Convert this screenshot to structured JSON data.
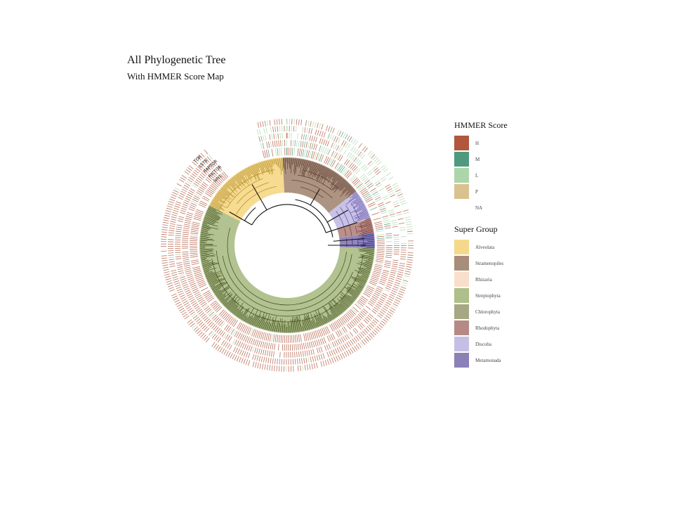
{
  "title": "All Phylogenetic Tree",
  "subtitle": "With HMMER Score Map",
  "ring_labels": [
    "TOR",
    "LST8",
    "RAPTOR",
    "RICTOR",
    "SIN1"
  ],
  "hmmer_legend": {
    "title": "HMMER Score",
    "items": [
      {
        "label": "H",
        "color": "#b0573d"
      },
      {
        "label": "M",
        "color": "#4f9a7f"
      },
      {
        "label": "L",
        "color": "#acd6aa"
      },
      {
        "label": "P",
        "color": "#d9c28f"
      },
      {
        "label": "NA",
        "color": "#ffffff"
      }
    ]
  },
  "group_legend": {
    "title": "Super Group",
    "items": [
      {
        "label": "Alveolata",
        "color": "#f5d98a"
      },
      {
        "label": "Stramenopiles",
        "color": "#a98d7b"
      },
      {
        "label": "Rhizaria",
        "color": "#f9dfcb"
      },
      {
        "label": "Streptophyta",
        "color": "#aebf8a"
      },
      {
        "label": "Chlorophyta",
        "color": "#a7a883"
      },
      {
        "label": "Rhodophyta",
        "color": "#b58a85"
      },
      {
        "label": "Discoba",
        "color": "#c5bfe6"
      },
      {
        "label": "Metamonada",
        "color": "#8c80b8"
      }
    ]
  },
  "clades": [
    {
      "group": "Alveolata",
      "start": 297,
      "end": 357,
      "color": "#f5d98a",
      "branch": "#b08a2a"
    },
    {
      "group": "Stramenopiles",
      "start": 357,
      "end": 52,
      "color": "#a98d7b",
      "branch": "#5a3a2a"
    },
    {
      "group": "Discoba",
      "start": 52,
      "end": 72,
      "color": "#c5bfe6",
      "branch": "#5a4aa0"
    },
    {
      "group": "Rhodophyta",
      "start": 72,
      "end": 82,
      "color": "#b58a85",
      "branch": "#7a3a35"
    },
    {
      "group": "Metamonada",
      "start": 82,
      "end": 92,
      "color": "#8c80b8",
      "branch": "#2a2a80"
    },
    {
      "group": "Streptophyta",
      "start": 92,
      "end": 297,
      "color": "#aebf8a",
      "branch": "#3d4a15"
    }
  ]
}
